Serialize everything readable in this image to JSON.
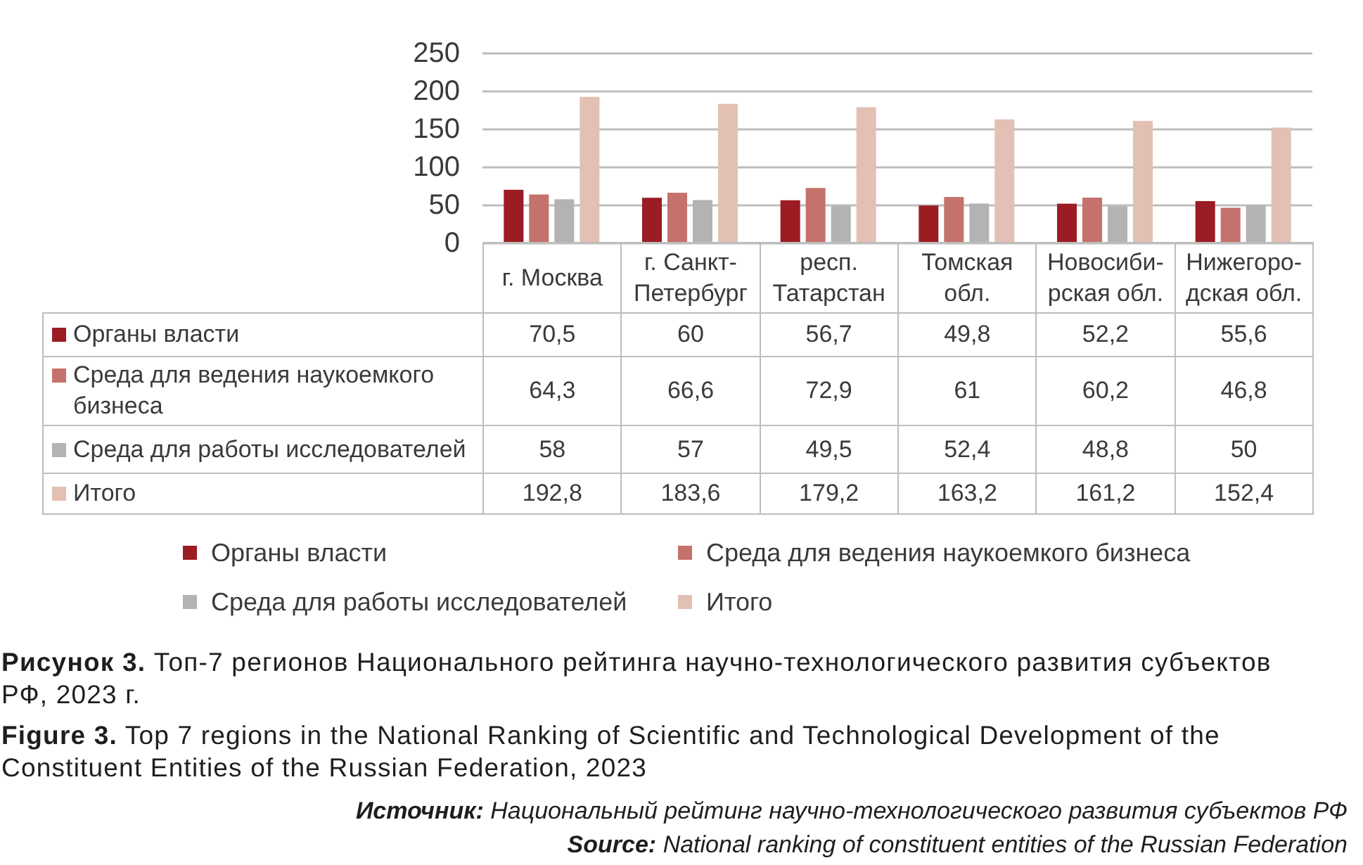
{
  "chart_data": {
    "type": "bar",
    "title": "Рисунок 3. Топ-7 регионов Национального рейтинга научно-технологического развития субъектов РФ, 2023 г.",
    "subtitle": "Figure 3. Top 7 regions in the National Ranking of Scientific and Technological Development of the Constituent Entities of the Russian Federation, 2023",
    "categories": [
      "г. Москва",
      "г. Санкт-Петербург",
      "респ. Татарстан",
      "Томская обл.",
      "Новосиби-рская обл.",
      "Нижегоро-дская обл."
    ],
    "series": [
      {
        "name": "Органы власти",
        "color": "#9b1c22",
        "values": [
          70.5,
          60,
          56.7,
          49.8,
          52.2,
          55.6
        ],
        "value_labels": [
          "70,5",
          "60",
          "56,7",
          "49,8",
          "52,2",
          "55,6"
        ]
      },
      {
        "name": "Среда для ведения наукоемкого бизнеса",
        "color": "#c4726b",
        "values": [
          64.3,
          66.6,
          72.9,
          61,
          60.2,
          46.8
        ],
        "value_labels": [
          "64,3",
          "66,6",
          "72,9",
          "61",
          "60,2",
          "46,8"
        ]
      },
      {
        "name": "Среда для работы исследователей",
        "color": "#b3b3b3",
        "values": [
          58,
          57,
          49.5,
          52.4,
          48.8,
          50
        ],
        "value_labels": [
          "58",
          "57",
          "49,5",
          "52,4",
          "48,8",
          "50"
        ]
      },
      {
        "name": "Итого",
        "color": "#e3c0b4",
        "values": [
          192.8,
          183.6,
          179.2,
          163.2,
          161.2,
          152.4
        ],
        "value_labels": [
          "192,8",
          "183,6",
          "179,2",
          "163,2",
          "161,2",
          "152,4"
        ]
      }
    ],
    "ylim": [
      0,
      250
    ],
    "yticks": [
      0,
      50,
      100,
      150,
      200,
      250
    ],
    "grid": "y",
    "legend": "bottom",
    "annotations": [
      "Источник: Национальный рейтинг научно-технологического развития субъектов РФ",
      "Source: National ranking of constituent entities of the Russian Federation"
    ]
  }
}
